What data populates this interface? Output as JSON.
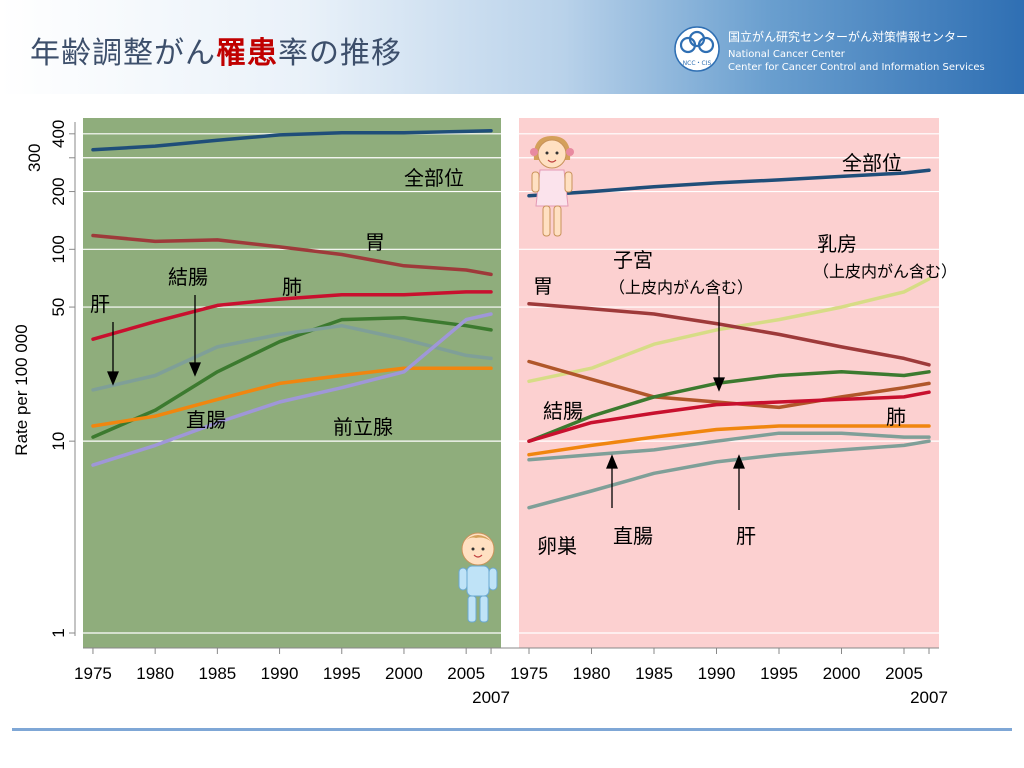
{
  "header": {
    "title_pre": "年齢調整がん",
    "title_em": "罹患",
    "title_post": "率の推移",
    "org_ja": "国立がん研究センターがん対策情報センター",
    "org_en_1": "National Cancer Center",
    "org_en_2": "Center for Cancer Control and Information Services",
    "logo_text": "NCC・CIS"
  },
  "chart_data": [
    {
      "type": "line",
      "panel": "male",
      "background": "#8fad7c",
      "yscale": "log",
      "ylim": [
        1,
        450
      ],
      "xlim": [
        1974.2,
        2007.8
      ],
      "yticks": [
        "1",
        "10",
        "50",
        "100",
        "200",
        "300",
        "400"
      ],
      "ylabel": "Rate per 100 000",
      "xticks": [
        "1975",
        "1980",
        "1985",
        "1990",
        "1995",
        "2000",
        "2005"
      ],
      "x_end_label": "2007",
      "series": [
        {
          "name": "全部位",
          "color": "#1f4e79",
          "x": [
            1975,
            1980,
            1985,
            1990,
            1995,
            2000,
            2005,
            2007
          ],
          "y": [
            330,
            345,
            370,
            395,
            405,
            405,
            412,
            415
          ]
        },
        {
          "name": "胃",
          "color": "#9e3a3a",
          "x": [
            1975,
            1980,
            1985,
            1990,
            1995,
            2000,
            2005,
            2007
          ],
          "y": [
            118,
            110,
            112,
            103,
            94,
            82,
            78,
            74
          ]
        },
        {
          "name": "肺",
          "color": "#c8102e",
          "x": [
            1975,
            1980,
            1985,
            1990,
            1995,
            2000,
            2005,
            2007
          ],
          "y": [
            34,
            42,
            51,
            55,
            58,
            58,
            60,
            60
          ]
        },
        {
          "name": "結腸",
          "color": "#3c7a2f",
          "x": [
            1975,
            1980,
            1985,
            1990,
            1995,
            2000,
            2005,
            2007
          ],
          "y": [
            10.5,
            14.5,
            23,
            33,
            43,
            44,
            40,
            38
          ]
        },
        {
          "name": "肝",
          "color": "#7f9f98",
          "x": [
            1975,
            1980,
            1985,
            1990,
            1995,
            2000,
            2005,
            2007
          ],
          "y": [
            18.5,
            22,
            31,
            36,
            40,
            34,
            28,
            27
          ]
        },
        {
          "name": "直腸",
          "color": "#f0860f",
          "x": [
            1975,
            1980,
            1985,
            1990,
            1995,
            2000,
            2005,
            2007
          ],
          "y": [
            12,
            13.5,
            16.5,
            20,
            22,
            24,
            24,
            24
          ]
        },
        {
          "name": "前立腺",
          "color": "#9f97d8",
          "x": [
            1975,
            1980,
            1985,
            1990,
            1995,
            2000,
            2005,
            2007
          ],
          "y": [
            7.5,
            9.5,
            12.5,
            16,
            19,
            23,
            43,
            46
          ]
        }
      ]
    },
    {
      "type": "line",
      "panel": "female",
      "background": "#fcd0d0",
      "yscale": "log",
      "ylim": [
        1,
        450
      ],
      "xlim": [
        1974.2,
        2007.8
      ],
      "xticks": [
        "1975",
        "1980",
        "1985",
        "1990",
        "1995",
        "2000",
        "2005"
      ],
      "x_end_label": "2007",
      "series": [
        {
          "name": "全部位",
          "color": "#1f4e79",
          "x": [
            1975,
            1980,
            1985,
            1990,
            1995,
            2000,
            2005,
            2007
          ],
          "y": [
            190,
            200,
            212,
            222,
            230,
            240,
            250,
            258
          ]
        },
        {
          "name": "乳房（上皮内がん含む）",
          "color": "#d7dc86",
          "x": [
            1975,
            1980,
            1985,
            1990,
            1995,
            2000,
            2005,
            2007
          ],
          "y": [
            20.5,
            24,
            32,
            38,
            43,
            50,
            60,
            70
          ]
        },
        {
          "name": "胃",
          "color": "#9e3a3a",
          "x": [
            1975,
            1980,
            1985,
            1990,
            1995,
            2000,
            2005,
            2007
          ],
          "y": [
            52,
            49,
            46,
            41,
            36,
            31,
            27,
            25
          ]
        },
        {
          "name": "子宮（上皮内がん含む）",
          "color": "#b0572a",
          "x": [
            1975,
            1980,
            1985,
            1990,
            1995,
            2000,
            2005,
            2007
          ],
          "y": [
            26,
            21,
            17,
            16,
            15,
            17,
            19,
            20
          ]
        },
        {
          "name": "結腸",
          "color": "#3c7a2f",
          "x": [
            1975,
            1980,
            1985,
            1990,
            1995,
            2000,
            2005,
            2007
          ],
          "y": [
            10,
            13.5,
            17,
            20,
            22,
            23,
            22,
            23
          ]
        },
        {
          "name": "肺",
          "color": "#c8102e",
          "x": [
            1975,
            1980,
            1985,
            1990,
            1995,
            2000,
            2005,
            2007
          ],
          "y": [
            10,
            12.5,
            14,
            15.5,
            16,
            16.5,
            17,
            18
          ]
        },
        {
          "name": "直腸",
          "color": "#f0860f",
          "x": [
            1975,
            1980,
            1985,
            1990,
            1995,
            2000,
            2005,
            2007
          ],
          "y": [
            8.5,
            9.5,
            10.5,
            11.5,
            12,
            12,
            12,
            12
          ]
        },
        {
          "name": "卵巣",
          "color": "#7f9f98",
          "x": [
            1975,
            1980,
            1985,
            1990,
            1995,
            2000,
            2005,
            2007
          ],
          "y": [
            8,
            8.5,
            9,
            10,
            11,
            11,
            10.5,
            10.5
          ]
        },
        {
          "name": "肝",
          "color": "#7f9f98",
          "x": [
            1975,
            1980,
            1985,
            1990,
            1995,
            2000,
            2005,
            2007
          ],
          "y": [
            4.5,
            5.5,
            6.8,
            7.8,
            8.5,
            9,
            9.5,
            10
          ]
        }
      ]
    }
  ],
  "labels": {
    "m_all": "全部位",
    "m_stomach": "胃",
    "m_colon": "結腸",
    "m_lung": "肺",
    "m_liver": "肝",
    "m_rectum": "直腸",
    "m_prostate": "前立腺",
    "f_all": "全部位",
    "f_breast_1": "乳房",
    "f_breast_2": "（上皮内がん含む）",
    "f_uterus_1": "子宮",
    "f_uterus_2": "（上皮内がん含む）",
    "f_stomach": "胃",
    "f_colon": "結腸",
    "f_lung": "肺",
    "f_ovary": "卵巣",
    "f_rectum": "直腸",
    "f_liver": "肝"
  },
  "icons": {
    "male": "boy-icon",
    "female": "girl-icon"
  }
}
